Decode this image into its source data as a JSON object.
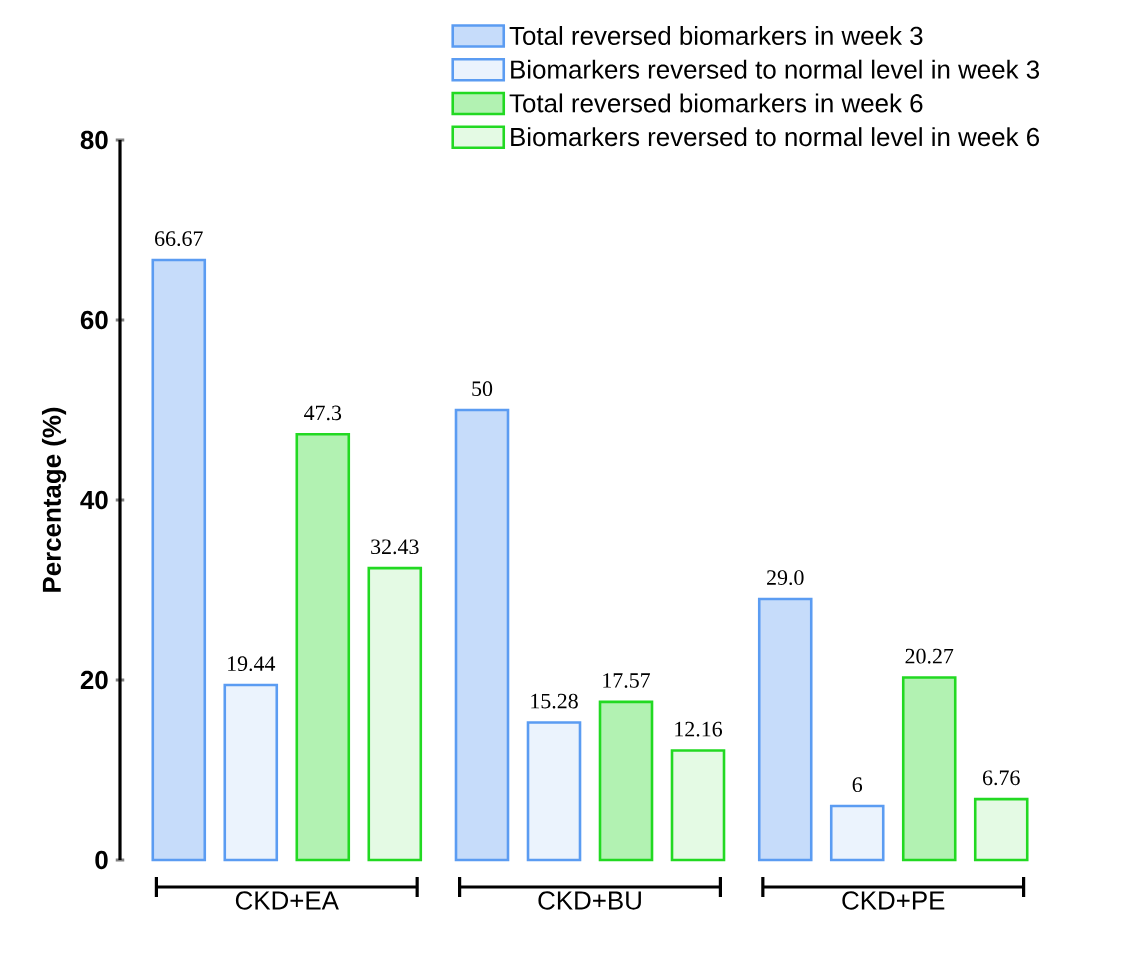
{
  "chart_data": {
    "type": "bar",
    "ylabel": "Percentage (%)",
    "categories": [
      "CKD+EA",
      "CKD+BU",
      "CKD+PE"
    ],
    "series": [
      {
        "name": "Total reversed biomarkers in week 3",
        "color": "#5b9cf2",
        "values": [
          66.67,
          50,
          29.0
        ],
        "value_labels": [
          "66.67",
          "50",
          "29.0"
        ]
      },
      {
        "name": "Biomarkers reversed to normal level in week 3",
        "color": "#5b9cf2",
        "values": [
          19.44,
          15.28,
          6
        ],
        "value_labels": [
          "19.44",
          "15.28",
          "6"
        ]
      },
      {
        "name": "Total reversed biomarkers in week 6",
        "color": "#22d922",
        "values": [
          47.3,
          17.57,
          20.27
        ],
        "value_labels": [
          "47.3",
          "17.57",
          "20.27"
        ]
      },
      {
        "name": "Biomarkers reversed to normal level in week 6",
        "color": "#22d922",
        "values": [
          32.43,
          12.16,
          6.76
        ],
        "value_labels": [
          "32.43",
          "12.16",
          "6.76"
        ]
      }
    ],
    "ylim": [
      0,
      80
    ],
    "yticks": [
      0,
      20,
      40,
      60,
      80
    ],
    "grid": false,
    "legend": "top right"
  }
}
